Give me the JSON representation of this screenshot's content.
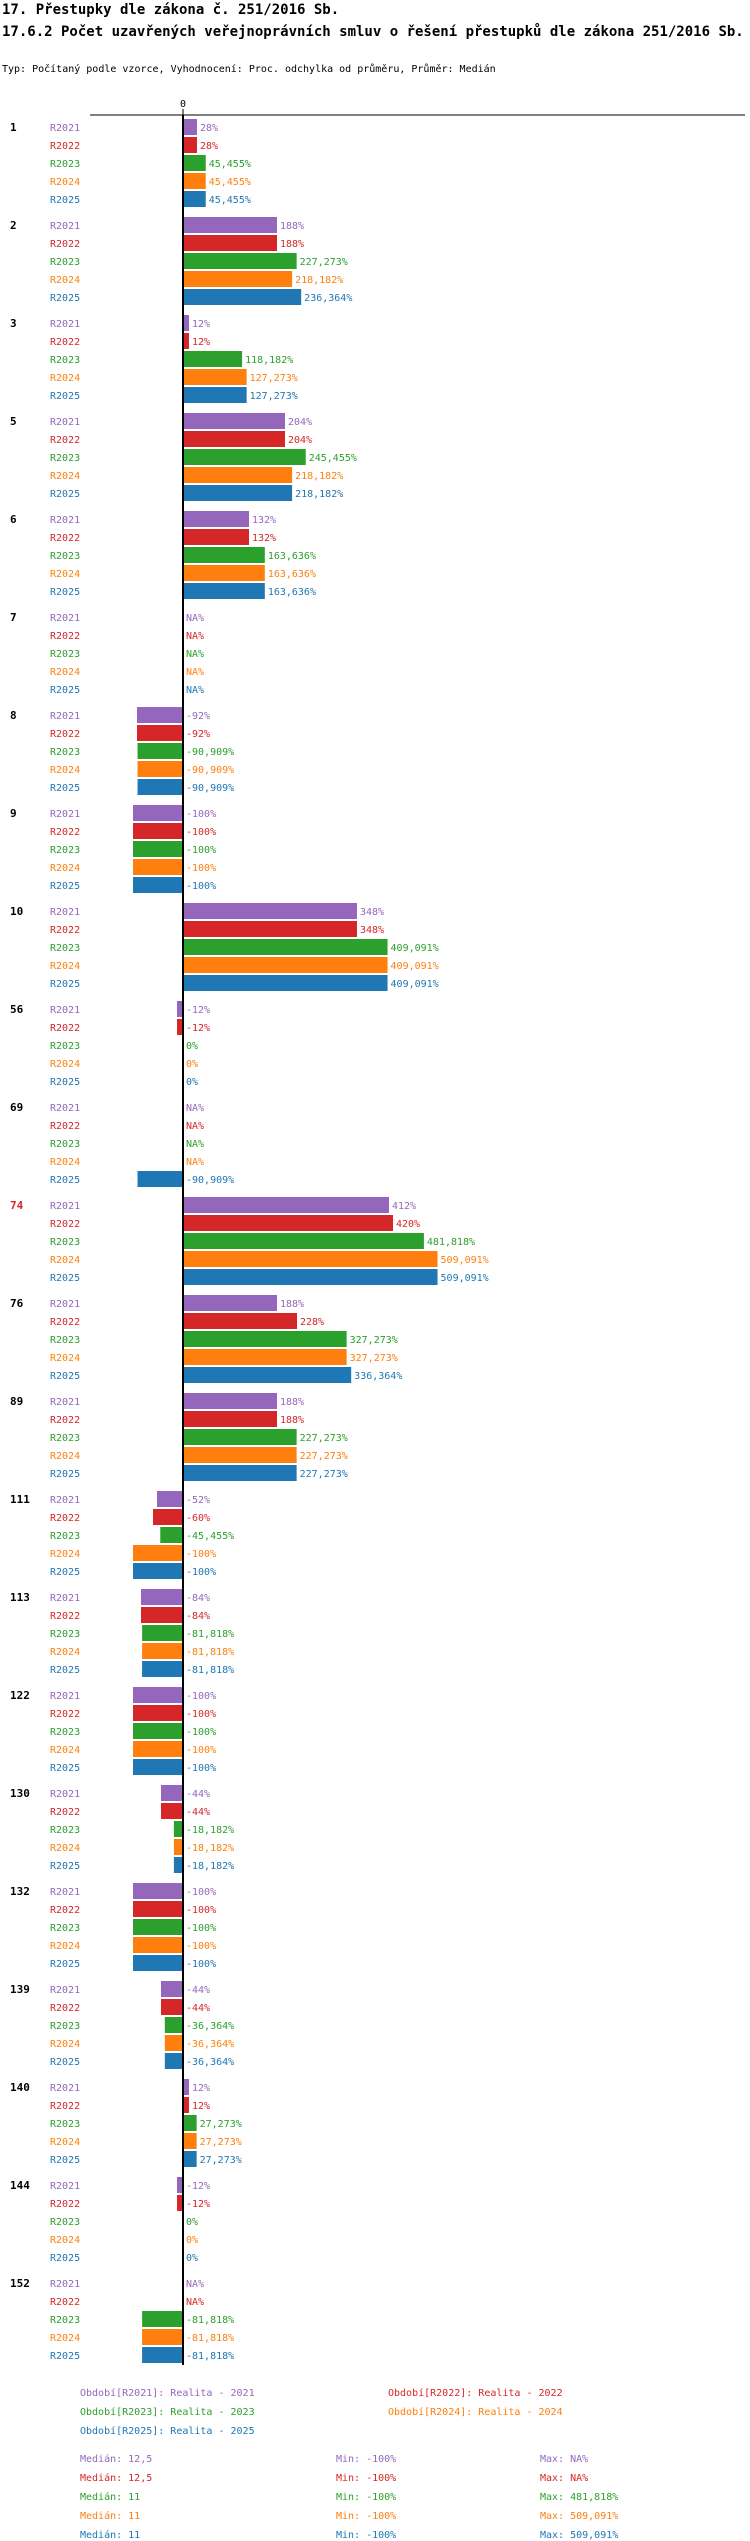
{
  "header": {
    "title": "17. Přestupky dle zákona č. 251/2016 Sb.",
    "subtitle": "17.6.2 Počet uzavřených veřejnoprávních smluv o řešení přestupků dle zákona 251/2016 Sb.",
    "type_line": "Typ: Počítaný podle vzorce, Vyhodnocení: Proc. odchylka od průměru, Průměr: Medián"
  },
  "colors": {
    "R2021": "#9467bd",
    "R2022": "#d62728",
    "R2023": "#2ca02c",
    "R2024": "#ff7f0e",
    "R2025": "#1f77b4",
    "highlight_group": "#d62728"
  },
  "chart_data": {
    "type": "bar",
    "orientation": "horizontal",
    "axis_zero_label": "0",
    "series_names": [
      "R2021",
      "R2022",
      "R2023",
      "R2024",
      "R2025"
    ],
    "highlight_group": "74",
    "groups": [
      {
        "id": "1",
        "values": [
          28,
          28,
          45.455,
          45.455,
          45.455
        ],
        "labels": [
          "28%",
          "28%",
          "45,455%",
          "45,455%",
          "45,455%"
        ]
      },
      {
        "id": "2",
        "values": [
          188,
          188,
          227.273,
          218.182,
          236.364
        ],
        "labels": [
          "188%",
          "188%",
          "227,273%",
          "218,182%",
          "236,364%"
        ]
      },
      {
        "id": "3",
        "values": [
          12,
          12,
          118.182,
          127.273,
          127.273
        ],
        "labels": [
          "12%",
          "12%",
          "118,182%",
          "127,273%",
          "127,273%"
        ]
      },
      {
        "id": "5",
        "values": [
          204,
          204,
          245.455,
          218.182,
          218.182
        ],
        "labels": [
          "204%",
          "204%",
          "245,455%",
          "218,182%",
          "218,182%"
        ]
      },
      {
        "id": "6",
        "values": [
          132,
          132,
          163.636,
          163.636,
          163.636
        ],
        "labels": [
          "132%",
          "132%",
          "163,636%",
          "163,636%",
          "163,636%"
        ]
      },
      {
        "id": "7",
        "values": [
          null,
          null,
          null,
          null,
          null
        ],
        "labels": [
          "NA%",
          "NA%",
          "NA%",
          "NA%",
          "NA%"
        ]
      },
      {
        "id": "8",
        "values": [
          -92,
          -92,
          -90.909,
          -90.909,
          -90.909
        ],
        "labels": [
          "-92%",
          "-92%",
          "-90,909%",
          "-90,909%",
          "-90,909%"
        ]
      },
      {
        "id": "9",
        "values": [
          -100,
          -100,
          -100,
          -100,
          -100
        ],
        "labels": [
          "-100%",
          "-100%",
          "-100%",
          "-100%",
          "-100%"
        ]
      },
      {
        "id": "10",
        "values": [
          348,
          348,
          409.091,
          409.091,
          409.091
        ],
        "labels": [
          "348%",
          "348%",
          "409,091%",
          "409,091%",
          "409,091%"
        ]
      },
      {
        "id": "56",
        "values": [
          -12,
          -12,
          0,
          0,
          0
        ],
        "labels": [
          "-12%",
          "-12%",
          "0%",
          "0%",
          "0%"
        ]
      },
      {
        "id": "69",
        "values": [
          null,
          null,
          null,
          null,
          -90.909
        ],
        "labels": [
          "NA%",
          "NA%",
          "NA%",
          "NA%",
          "-90,909%"
        ]
      },
      {
        "id": "74",
        "values": [
          412,
          420,
          481.818,
          509.091,
          509.091
        ],
        "labels": [
          "412%",
          "420%",
          "481,818%",
          "509,091%",
          "509,091%"
        ]
      },
      {
        "id": "76",
        "values": [
          188,
          228,
          327.273,
          327.273,
          336.364
        ],
        "labels": [
          "188%",
          "228%",
          "327,273%",
          "327,273%",
          "336,364%"
        ]
      },
      {
        "id": "89",
        "values": [
          188,
          188,
          227.273,
          227.273,
          227.273
        ],
        "labels": [
          "188%",
          "188%",
          "227,273%",
          "227,273%",
          "227,273%"
        ]
      },
      {
        "id": "111",
        "values": [
          -52,
          -60,
          -45.455,
          -100,
          -100
        ],
        "labels": [
          "-52%",
          "-60%",
          "-45,455%",
          "-100%",
          "-100%"
        ]
      },
      {
        "id": "113",
        "values": [
          -84,
          -84,
          -81.818,
          -81.818,
          -81.818
        ],
        "labels": [
          "-84%",
          "-84%",
          "-81,818%",
          "-81,818%",
          "-81,818%"
        ]
      },
      {
        "id": "122",
        "values": [
          -100,
          -100,
          -100,
          -100,
          -100
        ],
        "labels": [
          "-100%",
          "-100%",
          "-100%",
          "-100%",
          "-100%"
        ]
      },
      {
        "id": "130",
        "values": [
          -44,
          -44,
          -18.182,
          -18.182,
          -18.182
        ],
        "labels": [
          "-44%",
          "-44%",
          "-18,182%",
          "-18,182%",
          "-18,182%"
        ]
      },
      {
        "id": "132",
        "values": [
          -100,
          -100,
          -100,
          -100,
          -100
        ],
        "labels": [
          "-100%",
          "-100%",
          "-100%",
          "-100%",
          "-100%"
        ]
      },
      {
        "id": "139",
        "values": [
          -44,
          -44,
          -36.364,
          -36.364,
          -36.364
        ],
        "labels": [
          "-44%",
          "-44%",
          "-36,364%",
          "-36,364%",
          "-36,364%"
        ]
      },
      {
        "id": "140",
        "values": [
          12,
          12,
          27.273,
          27.273,
          27.273
        ],
        "labels": [
          "12%",
          "12%",
          "27,273%",
          "27,273%",
          "27,273%"
        ]
      },
      {
        "id": "144",
        "values": [
          -12,
          -12,
          0,
          0,
          0
        ],
        "labels": [
          "-12%",
          "-12%",
          "0%",
          "0%",
          "0%"
        ]
      },
      {
        "id": "152",
        "values": [
          null,
          null,
          -81.818,
          -81.818,
          -81.818
        ],
        "labels": [
          "NA%",
          "NA%",
          "-81,818%",
          "-81,818%",
          "-81,818%"
        ]
      }
    ],
    "legend": [
      "Období[R2021]: Realita - 2021",
      "Období[R2022]: Realita - 2022",
      "Období[R2023]: Realita - 2023",
      "Období[R2024]: Realita - 2024",
      "Období[R2025]: Realita - 2025"
    ],
    "stats": [
      {
        "median": "Medián: 12,5",
        "min": "Min: -100%",
        "max": "Max: NA%"
      },
      {
        "median": "Medián: 12,5",
        "min": "Min: -100%",
        "max": "Max: NA%"
      },
      {
        "median": "Medián: 11",
        "min": "Min: -100%",
        "max": "Max: 481,818%"
      },
      {
        "median": "Medián: 11",
        "min": "Min: -100%",
        "max": "Max: 509,091%"
      },
      {
        "median": "Medián: 11",
        "min": "Min: -100%",
        "max": "Max: 509,091%"
      }
    ]
  }
}
